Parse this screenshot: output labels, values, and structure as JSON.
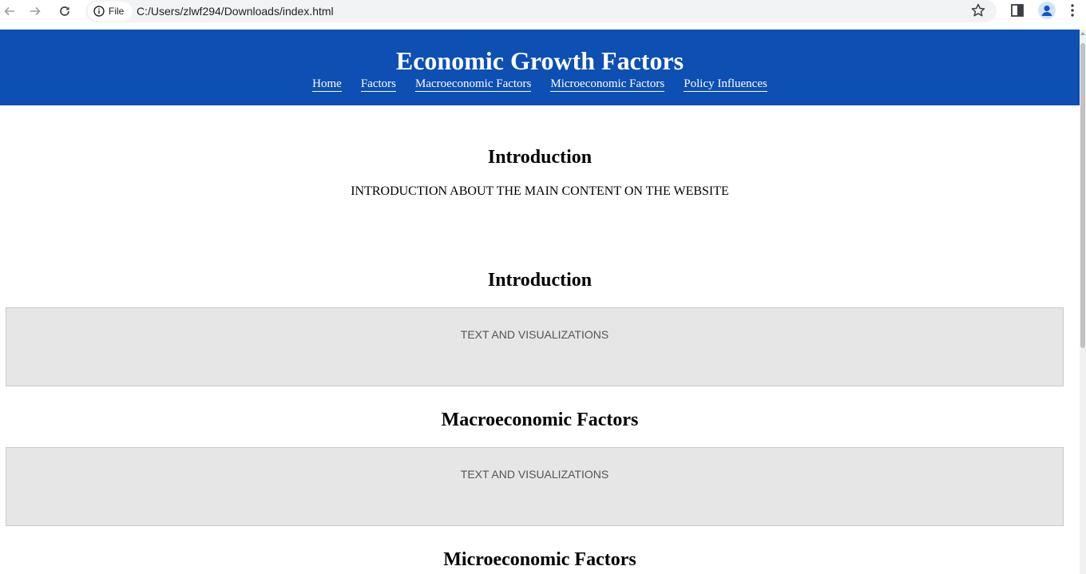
{
  "browser": {
    "site_chip": "File",
    "url": "C:/Users/zlwf294/Downloads/index.html"
  },
  "header": {
    "title": "Economic Growth Factors",
    "nav": [
      "Home",
      "Factors",
      "Macroeconomic Factors",
      "Microeconomic Factors",
      "Policy Influences"
    ]
  },
  "intro": {
    "heading": "Introduction",
    "text": "INTRODUCTION ABOUT THE MAIN CONTENT ON THE WEBSITE"
  },
  "sections": [
    {
      "heading": "Introduction",
      "content": "TEXT AND VISUALIZATIONS"
    },
    {
      "heading": "Macroeconomic Factors",
      "content": "TEXT AND VISUALIZATIONS"
    },
    {
      "heading": "Microeconomic Factors"
    }
  ],
  "colors": {
    "header_bg": "#0d4fb3",
    "box_bg": "#e6e6e6"
  },
  "icons": [
    "back-arrow-icon",
    "forward-arrow-icon",
    "reload-icon",
    "info-icon",
    "star-icon",
    "side-panel-icon",
    "profile-icon",
    "kebab-menu-icon"
  ]
}
